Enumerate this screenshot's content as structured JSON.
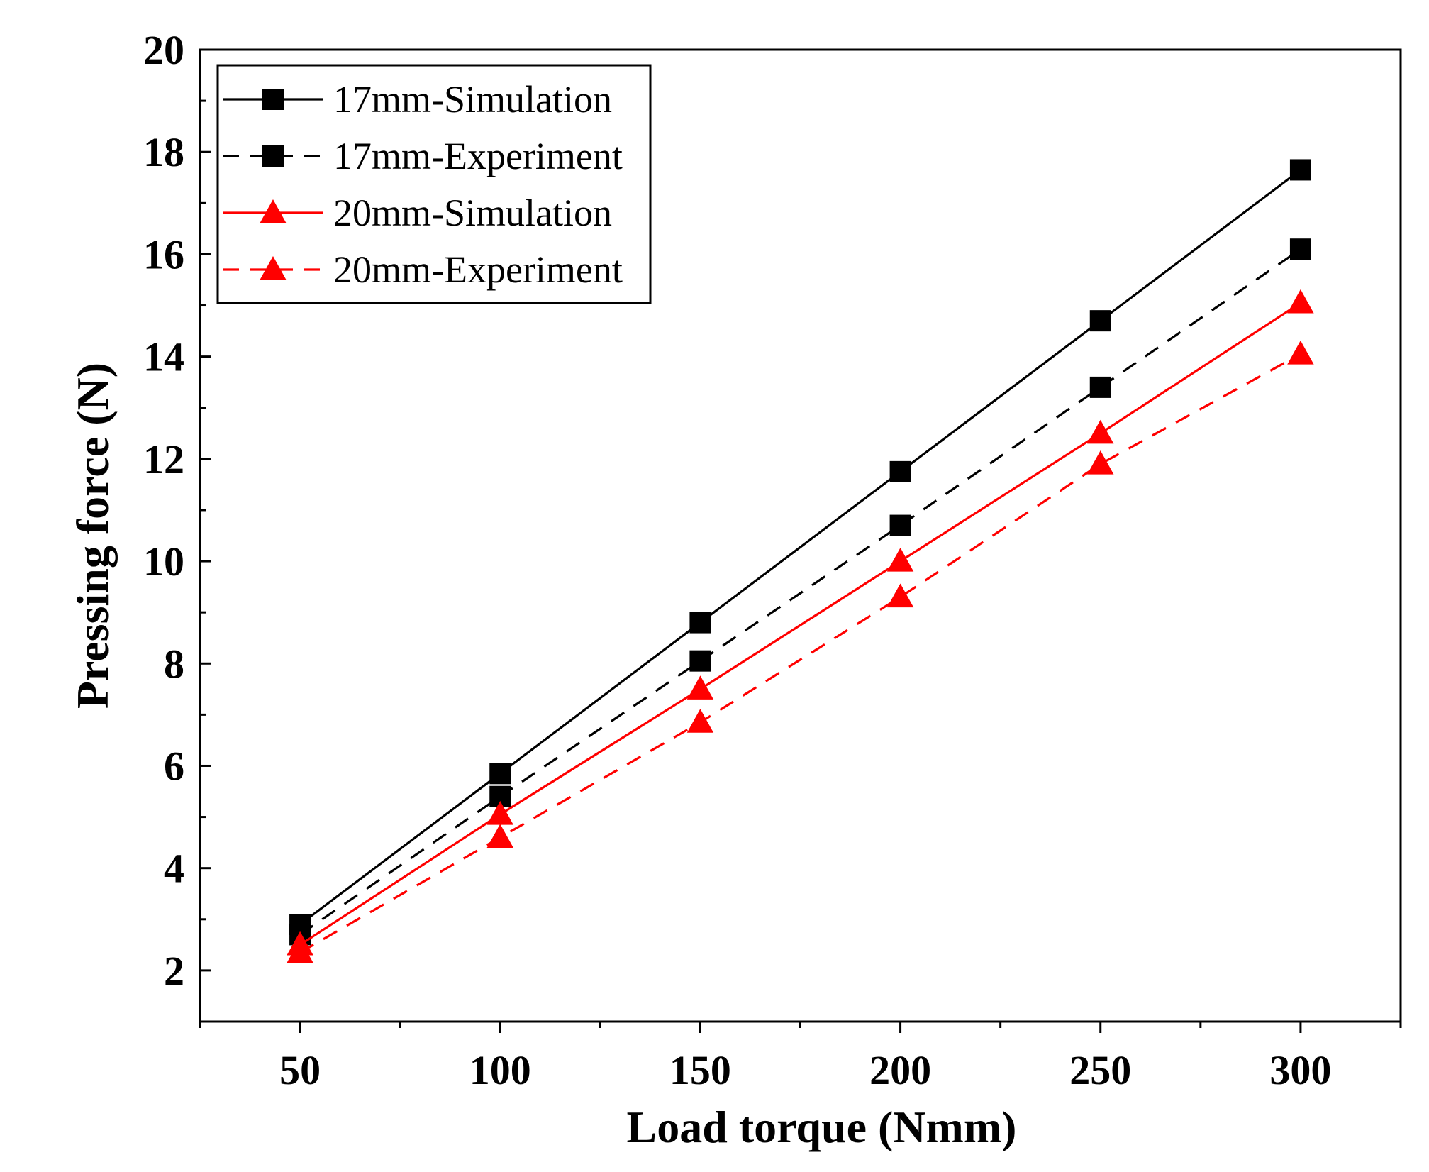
{
  "chart_data": {
    "type": "line",
    "title": "",
    "xlabel": "Load torque (Nmm)",
    "ylabel": "Pressing force (N)",
    "xlim": [
      25,
      325
    ],
    "ylim": [
      1,
      20
    ],
    "x_ticks": [
      50,
      100,
      150,
      200,
      250,
      300
    ],
    "y_ticks": [
      2,
      4,
      6,
      8,
      10,
      12,
      14,
      16,
      18,
      20
    ],
    "grid": false,
    "legend_position": "top-left",
    "series": [
      {
        "name": "17mm-Simulation",
        "x": [
          50,
          100,
          150,
          200,
          250,
          300
        ],
        "values": [
          2.9,
          5.85,
          8.8,
          11.75,
          14.7,
          17.65
        ],
        "color": "#000000",
        "style": "solid",
        "marker": "square"
      },
      {
        "name": "17mm-Experiment",
        "x": [
          50,
          100,
          150,
          200,
          250,
          300
        ],
        "values": [
          2.7,
          5.4,
          8.05,
          10.7,
          13.4,
          16.1
        ],
        "color": "#000000",
        "style": "dashed",
        "marker": "square"
      },
      {
        "name": "20mm-Simulation",
        "x": [
          50,
          100,
          150,
          200,
          250,
          300
        ],
        "values": [
          2.5,
          5.05,
          7.5,
          10.0,
          12.5,
          15.05
        ],
        "color": "#ff0000",
        "style": "solid",
        "marker": "triangle"
      },
      {
        "name": "20mm-Experiment",
        "x": [
          50,
          100,
          150,
          200,
          250,
          300
        ],
        "values": [
          2.35,
          4.6,
          6.85,
          9.3,
          11.9,
          14.05
        ],
        "color": "#ff0000",
        "style": "dashed",
        "marker": "triangle"
      }
    ]
  }
}
